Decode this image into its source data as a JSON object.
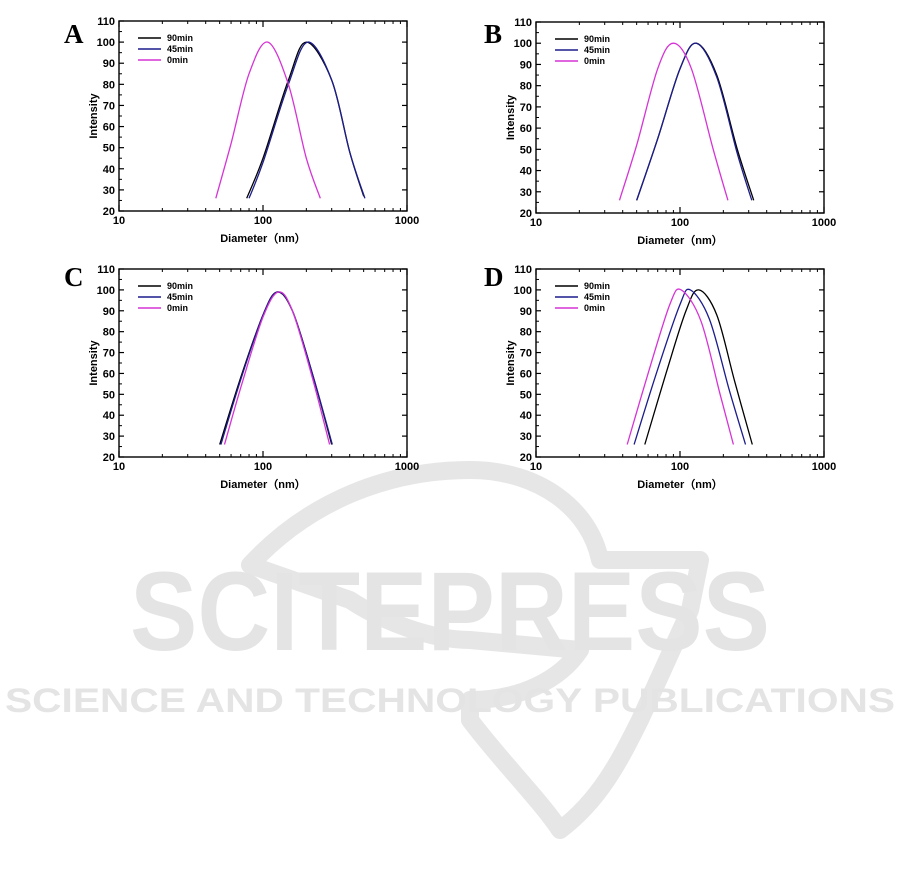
{
  "watermark": {
    "line1": "SCITEPRESS",
    "line2": "SCIENCE AND TECHNOLOGY PUBLICATIONS"
  },
  "colors": {
    "s90": "#000000",
    "s45": "#1c1c8c",
    "s0": "#d633d6",
    "watermark": "#e4e4e4"
  },
  "chart_data": [
    {
      "type": "line",
      "panel": "A",
      "xscale": "log",
      "xlabel": "Diameter（nm）",
      "ylabel": "Intensity",
      "xlim": [
        10,
        1000
      ],
      "ylim": [
        20,
        110
      ],
      "xticks": [
        10,
        100,
        1000
      ],
      "yticks": [
        20,
        30,
        40,
        50,
        60,
        70,
        80,
        90,
        100,
        110
      ],
      "legend": "top-left",
      "grid": false,
      "series": [
        {
          "name": "90min",
          "color": "#000000",
          "x": [
            77,
            100,
            150,
            200,
            300,
            400,
            500
          ],
          "y": [
            26,
            45,
            82,
            100,
            82,
            48,
            27
          ]
        },
        {
          "name": "45min",
          "color": "#1c1c8c",
          "x": [
            80,
            100,
            150,
            205,
            300,
            400,
            510
          ],
          "y": [
            26,
            43,
            80,
            100,
            82,
            48,
            26
          ]
        },
        {
          "name": "0min",
          "color": "#d633d6",
          "x": [
            47,
            60,
            80,
            108,
            150,
            200,
            250
          ],
          "y": [
            26,
            52,
            85,
            100,
            80,
            45,
            26
          ]
        }
      ]
    },
    {
      "type": "line",
      "panel": "B",
      "xscale": "log",
      "xlabel": "Diameter（nm）",
      "ylabel": "Intensity",
      "xlim": [
        10,
        1000
      ],
      "ylim": [
        20,
        110
      ],
      "xticks": [
        10,
        100,
        1000
      ],
      "yticks": [
        20,
        30,
        40,
        50,
        60,
        70,
        80,
        90,
        100,
        110
      ],
      "legend": "top-left",
      "grid": false,
      "series": [
        {
          "name": "90min",
          "color": "#000000",
          "x": [
            50,
            70,
            100,
            130,
            180,
            250,
            325
          ],
          "y": [
            26,
            55,
            88,
            100,
            85,
            50,
            26
          ]
        },
        {
          "name": "45min",
          "color": "#1c1c8c",
          "x": [
            50,
            70,
            100,
            130,
            180,
            250,
            315
          ],
          "y": [
            26,
            55,
            88,
            100,
            84,
            48,
            26
          ]
        },
        {
          "name": "0min",
          "color": "#d633d6",
          "x": [
            38,
            50,
            70,
            90,
            120,
            170,
            215
          ],
          "y": [
            26,
            52,
            88,
            100,
            88,
            50,
            26
          ]
        }
      ]
    },
    {
      "type": "line",
      "panel": "C",
      "xscale": "log",
      "xlabel": "Diameter（nm）",
      "ylabel": "Intensity",
      "xlim": [
        10,
        1000
      ],
      "ylim": [
        20,
        110
      ],
      "xticks": [
        10,
        100,
        1000
      ],
      "yticks": [
        20,
        30,
        40,
        50,
        60,
        70,
        80,
        90,
        100,
        110
      ],
      "legend": "top-left",
      "grid": false,
      "series": [
        {
          "name": "90min",
          "color": "#000000",
          "x": [
            50,
            70,
            100,
            125,
            160,
            220,
            300
          ],
          "y": [
            26,
            58,
            88,
            99,
            90,
            60,
            26
          ]
        },
        {
          "name": "45min",
          "color": "#1c1c8c",
          "x": [
            51,
            70,
            100,
            126,
            160,
            220,
            303
          ],
          "y": [
            26,
            57,
            88,
            99,
            90,
            60,
            26
          ]
        },
        {
          "name": "0min",
          "color": "#d633d6",
          "x": [
            54,
            72,
            100,
            128,
            160,
            220,
            290
          ],
          "y": [
            26,
            56,
            87,
            99,
            90,
            58,
            26
          ]
        }
      ]
    },
    {
      "type": "line",
      "panel": "D",
      "xscale": "log",
      "xlabel": "Diameter（nm）",
      "ylabel": "Intensity",
      "xlim": [
        10,
        1000
      ],
      "ylim": [
        20,
        110
      ],
      "xticks": [
        10,
        100,
        1000
      ],
      "yticks": [
        20,
        30,
        40,
        50,
        60,
        70,
        80,
        90,
        100,
        110
      ],
      "legend": "top-left",
      "grid": false,
      "series": [
        {
          "name": "90min",
          "color": "#000000",
          "x": [
            57,
            80,
            110,
            135,
            180,
            240,
            318
          ],
          "y": [
            26,
            60,
            90,
            100,
            88,
            56,
            26
          ]
        },
        {
          "name": "45min",
          "color": "#1c1c8c",
          "x": [
            48,
            70,
            100,
            118,
            160,
            220,
            285
          ],
          "y": [
            26,
            62,
            93,
            100,
            86,
            52,
            26
          ]
        },
        {
          "name": "0min",
          "color": "#d633d6",
          "x": [
            43,
            60,
            85,
            102,
            140,
            190,
            235
          ],
          "y": [
            26,
            60,
            93,
            100,
            85,
            50,
            26
          ]
        }
      ]
    }
  ]
}
